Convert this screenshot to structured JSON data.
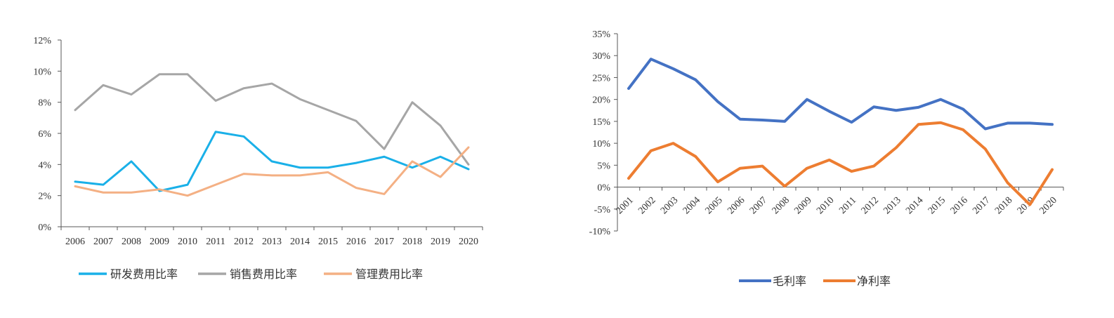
{
  "chart_data": [
    {
      "type": "line",
      "x": [
        "2006",
        "2007",
        "2008",
        "2009",
        "2010",
        "2011",
        "2012",
        "2013",
        "2014",
        "2015",
        "2016",
        "2017",
        "2018",
        "2019",
        "2020"
      ],
      "y_ticks": [
        "0%",
        "2%",
        "4%",
        "6%",
        "8%",
        "10%",
        "12%"
      ],
      "ylim": [
        0,
        12
      ],
      "grid": false,
      "legend_position": "bottom",
      "series": [
        {
          "name": "研发费用比率",
          "color": "#1ab0e8",
          "values": [
            2.9,
            2.7,
            4.2,
            2.3,
            2.7,
            6.1,
            5.8,
            4.2,
            3.8,
            3.8,
            4.1,
            4.5,
            3.8,
            4.5,
            3.7
          ]
        },
        {
          "name": "销售费用比率",
          "color": "#a6a6a6",
          "values": [
            7.5,
            9.1,
            8.5,
            9.8,
            9.8,
            8.1,
            8.9,
            9.2,
            8.2,
            7.5,
            6.8,
            5.0,
            8.0,
            6.5,
            4.0
          ]
        },
        {
          "name": "管理费用比率",
          "color": "#f4b084",
          "values": [
            2.6,
            2.2,
            2.2,
            2.4,
            2.0,
            2.7,
            3.4,
            3.3,
            3.3,
            3.5,
            2.5,
            2.1,
            4.2,
            3.2,
            5.1
          ]
        }
      ]
    },
    {
      "type": "line",
      "x": [
        "2001",
        "2002",
        "2003",
        "2004",
        "2005",
        "2006",
        "2007",
        "2008",
        "2009",
        "2010",
        "2011",
        "2012",
        "2013",
        "2014",
        "2015",
        "2016",
        "2017",
        "2018",
        "2019",
        "2020"
      ],
      "y_ticks": [
        "-10%",
        "-5%",
        "0%",
        "5%",
        "10%",
        "15%",
        "20%",
        "25%",
        "30%",
        "35%"
      ],
      "ylim": [
        -10,
        35
      ],
      "grid": false,
      "legend_position": "bottom",
      "series": [
        {
          "name": "毛利率",
          "color": "#4472c4",
          "values": [
            22.5,
            29.2,
            27.0,
            24.5,
            19.5,
            15.5,
            15.3,
            15.0,
            20.0,
            17.3,
            14.8,
            18.3,
            17.5,
            18.2,
            20.0,
            17.8,
            13.3,
            14.6,
            14.6,
            14.3
          ]
        },
        {
          "name": "净利率",
          "color": "#ed7d31",
          "values": [
            2.0,
            8.3,
            10.0,
            7.0,
            1.2,
            4.3,
            4.8,
            0.2,
            4.3,
            6.2,
            3.6,
            4.8,
            9.0,
            14.3,
            14.7,
            13.1,
            8.7,
            1.0,
            -4.0,
            4.0
          ]
        }
      ]
    }
  ]
}
